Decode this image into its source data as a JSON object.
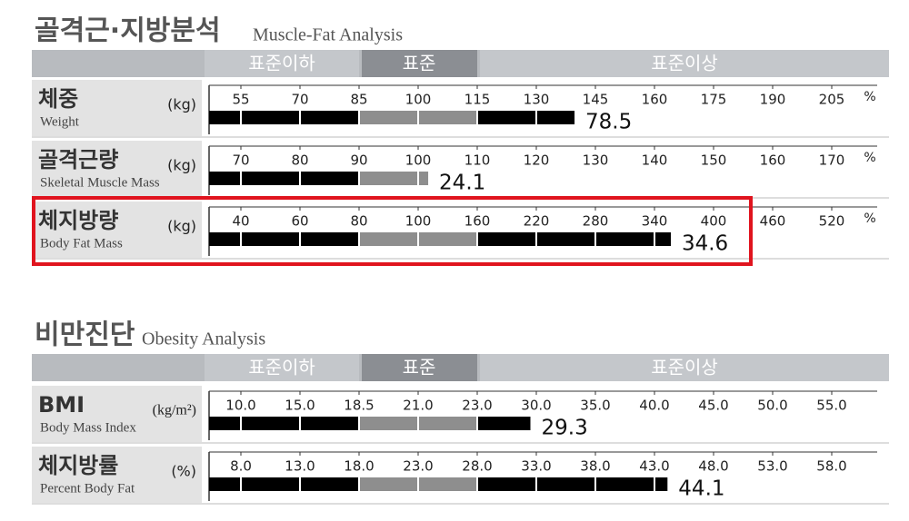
{
  "muscle_fat": {
    "title": "골격근·지방분석",
    "subtitle": "Muscle-Fat Analysis",
    "header": [
      "표준이하",
      "표준",
      "표준이상"
    ],
    "rows": [
      {
        "label": "체중",
        "label_en": "Weight",
        "unit": "(kg)",
        "ticks": [
          55,
          70,
          85,
          100,
          115,
          130,
          145,
          160,
          175,
          190,
          205
        ],
        "tick_unit": "%",
        "value": 78.5,
        "percent": 139.7
      },
      {
        "label": "골격근량",
        "label_en": "Skeletal Muscle Mass",
        "unit": "(kg)",
        "ticks": [
          70,
          80,
          90,
          100,
          110,
          120,
          130,
          140,
          150,
          160,
          170
        ],
        "tick_unit": "%",
        "value": 24.1,
        "percent": 101.7
      },
      {
        "label": "체지방량",
        "label_en": "Body Fat Mass",
        "unit": "(kg)",
        "ticks": [
          40,
          60,
          80,
          100,
          160,
          220,
          280,
          340,
          400,
          460,
          520
        ],
        "tick_unit": "%",
        "value": 34.6,
        "percent": 356.6
      }
    ]
  },
  "obesity": {
    "title": "비만진단",
    "subtitle": "Obesity Analysis",
    "header": [
      "표준이하",
      "표준",
      "표준이상"
    ],
    "rows": [
      {
        "label": "BMI",
        "label_en": "Body Mass Index",
        "unit": "(kg/m²)",
        "ticks": [
          {
            "value": 10,
            "label": "10.0"
          },
          {
            "value": 15,
            "label": "15.0"
          },
          18.5,
          {
            "value": 21,
            "label": "21.0"
          },
          {
            "value": 23,
            "label": "23.0"
          },
          {
            "value": 30,
            "label": "30.0"
          },
          {
            "value": 35,
            "label": "35.0"
          },
          {
            "value": 40,
            "label": "40.0"
          },
          {
            "value": 45,
            "label": "45.0"
          },
          {
            "value": 50,
            "label": "50.0"
          },
          {
            "value": 55,
            "label": "55.0"
          }
        ],
        "value": 29.3
      },
      {
        "label": "체지방률",
        "label_en": "Percent Body Fat",
        "unit": "(%)",
        "ticks": [
          {
            "value": 8,
            "label": "8.0"
          },
          {
            "value": 13,
            "label": "13.0"
          },
          {
            "value": 18,
            "label": "18.0"
          },
          {
            "value": 23,
            "label": "23.0"
          },
          {
            "value": 28,
            "label": "28.0"
          },
          {
            "value": 33,
            "label": "33.0"
          },
          {
            "value": 38,
            "label": "38.0"
          },
          {
            "value": 43,
            "label": "43.0"
          },
          {
            "value": 48,
            "label": "48.0"
          },
          {
            "value": 53,
            "label": "53.0"
          },
          {
            "value": 58,
            "label": "58.0"
          }
        ],
        "value": 44.1
      }
    ]
  }
}
